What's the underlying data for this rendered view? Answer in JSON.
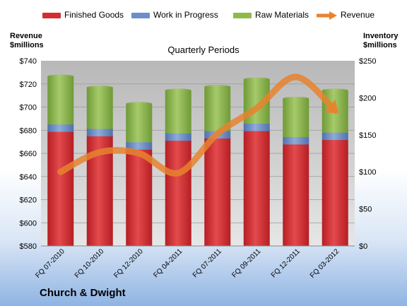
{
  "company": "Church & Dwight",
  "legend": {
    "finished_goods": "Finished Goods",
    "wip": "Work in Progress",
    "raw": "Raw Materials",
    "revenue": "Revenue"
  },
  "colors": {
    "finished_goods": "#d62b2f",
    "wip": "#6b8fca",
    "raw": "#8fba4a",
    "revenue": "#e8822e"
  },
  "chart_data": {
    "type": "bar",
    "title": "Quarterly Periods",
    "left_axis_label": [
      "Revenue",
      "$millions"
    ],
    "right_axis_label": [
      "Inventory",
      "$millions"
    ],
    "categories": [
      "FQ 07-2010",
      "FQ 10-2010",
      "FQ 12-2010",
      "FQ 04-2011",
      "FQ 07-2011",
      "FQ 09-2011",
      "FQ 12-2011",
      "FQ 03-2012"
    ],
    "inventory_ylim": [
      0,
      250
    ],
    "revenue_ylim": [
      580,
      740
    ],
    "left_ticks": [
      "$740",
      "$720",
      "$700",
      "$680",
      "$660",
      "$640",
      "$620",
      "$600",
      "$580"
    ],
    "right_ticks": [
      "$250",
      "$200",
      "$150",
      "$100",
      "$50",
      "$0"
    ],
    "stacked_series": [
      {
        "name": "Finished Goods",
        "values": [
          154,
          148,
          130,
          142,
          145,
          155,
          137,
          143
        ]
      },
      {
        "name": "Work in Progress",
        "values": [
          10,
          10,
          10,
          10,
          10,
          10,
          10,
          10
        ]
      },
      {
        "name": "Raw Materials",
        "values": [
          65,
          56,
          52,
          58,
          60,
          60,
          52,
          57
        ]
      }
    ],
    "line_series": {
      "name": "Revenue",
      "values": [
        644,
        661,
        660,
        643,
        677,
        699,
        726,
        697
      ]
    }
  }
}
